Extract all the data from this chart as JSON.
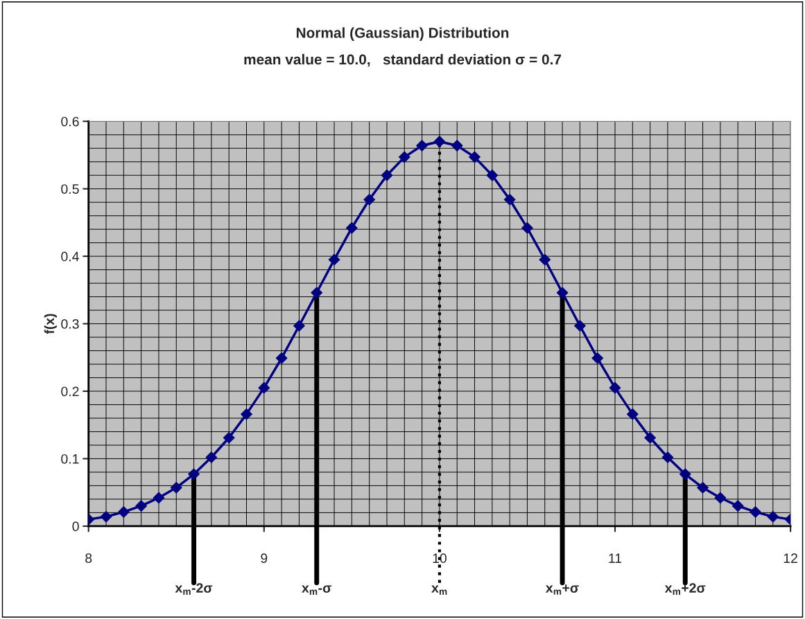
{
  "chart_data": {
    "type": "line",
    "title": "Normal (Gaussian) Distribution",
    "subtitle": "mean value = 10.0,   standard deviation σ = 0.7",
    "ylabel": "f(x)",
    "x": [
      8.0,
      8.1,
      8.2,
      8.3,
      8.4,
      8.5,
      8.6,
      8.7,
      8.8,
      8.9,
      9.0,
      9.1,
      9.2,
      9.3,
      9.4,
      9.5,
      9.6,
      9.7,
      9.8,
      9.9,
      10.0,
      10.1,
      10.2,
      10.3,
      10.4,
      10.5,
      10.6,
      10.7,
      10.8,
      10.9,
      11.0,
      11.1,
      11.2,
      11.3,
      11.4,
      11.5,
      11.6,
      11.7,
      11.8,
      11.9,
      12.0
    ],
    "series": [
      {
        "color": "#000080",
        "values": [
          0.01,
          0.014,
          0.021,
          0.03,
          0.042,
          0.057,
          0.077,
          0.102,
          0.131,
          0.166,
          0.205,
          0.249,
          0.297,
          0.346,
          0.395,
          0.442,
          0.484,
          0.52,
          0.547,
          0.564,
          0.57,
          0.564,
          0.547,
          0.52,
          0.484,
          0.442,
          0.395,
          0.346,
          0.297,
          0.249,
          0.205,
          0.166,
          0.131,
          0.102,
          0.077,
          0.057,
          0.042,
          0.03,
          0.021,
          0.014,
          0.01
        ]
      }
    ],
    "marker": "diamond",
    "line_style": "solid",
    "xlim": [
      8,
      12
    ],
    "xticks": [
      8,
      9,
      10,
      11,
      12
    ],
    "ylim": [
      0,
      0.6
    ],
    "yticks": [
      0,
      0.1,
      0.2,
      0.3,
      0.4,
      0.5,
      0.6
    ],
    "grid": true,
    "ref_lines": [
      {
        "axis": "x",
        "value": 8.6,
        "label": "x$_{m}$-2σ",
        "color": "#000000",
        "line_style": "solid"
      },
      {
        "axis": "x",
        "value": 9.3,
        "label": "x$_{m}$-σ",
        "color": "#000000",
        "line_style": "solid"
      },
      {
        "axis": "x",
        "value": 10.0,
        "label": "x$_{m}$",
        "color": "#000000",
        "line_style": "dotted"
      },
      {
        "axis": "x",
        "value": 10.7,
        "label": "x$_{m}$+σ",
        "color": "#000000",
        "line_style": "solid"
      },
      {
        "axis": "x",
        "value": 11.4,
        "label": "x$_{m}$+2σ",
        "color": "#000000",
        "line_style": "solid"
      }
    ]
  }
}
